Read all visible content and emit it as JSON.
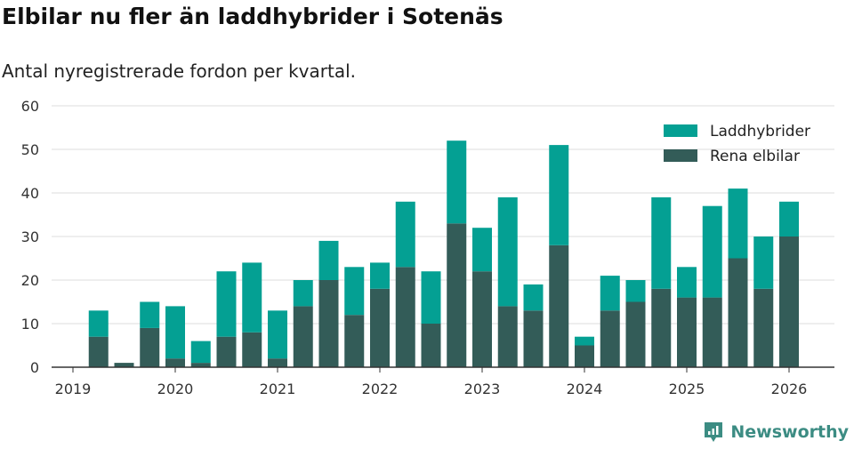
{
  "chart_data": {
    "type": "bar",
    "stacked": true,
    "title": "Elbilar nu fler än laddhybrider i Sotenäs",
    "subtitle": "Antal nyregistrerade fordon per kvartal.",
    "xlabel": "",
    "ylabel": "",
    "ylim": [
      0,
      60
    ],
    "yticks": [
      "0",
      "10",
      "20",
      "30",
      "40",
      "50",
      "60"
    ],
    "xticks": [
      "2019",
      "2020",
      "2021",
      "2022",
      "2023",
      "2024",
      "2025",
      "2026"
    ],
    "xrange": [
      2019,
      2026.5
    ],
    "grid": true,
    "legend_position": "top-right",
    "categories": [
      "2019 Q2",
      "2019 Q3",
      "2019 Q4",
      "2020 Q1",
      "2020 Q2",
      "2020 Q3",
      "2020 Q4",
      "2021 Q1",
      "2021 Q2",
      "2021 Q3",
      "2021 Q4",
      "2022 Q1",
      "2022 Q2",
      "2022 Q3",
      "2022 Q4",
      "2023 Q1",
      "2023 Q2",
      "2023 Q3",
      "2023 Q4",
      "2024 Q1",
      "2024 Q2",
      "2024 Q3",
      "2024 Q4",
      "2025 Q1",
      "2025 Q2",
      "2025 Q3",
      "2025 Q4",
      "2026 Q1"
    ],
    "x": [
      2019.25,
      2019.5,
      2019.75,
      2020.0,
      2020.25,
      2020.5,
      2020.75,
      2021.0,
      2021.25,
      2021.5,
      2021.75,
      2022.0,
      2022.25,
      2022.5,
      2022.75,
      2023.0,
      2023.25,
      2023.5,
      2023.75,
      2024.0,
      2024.25,
      2024.5,
      2024.75,
      2025.0,
      2025.25,
      2025.5,
      2025.75,
      2026.0
    ],
    "series": [
      {
        "name": "Rena elbilar",
        "color": "#335c58",
        "values": [
          7,
          1,
          9,
          2,
          1,
          7,
          8,
          2,
          14,
          20,
          12,
          18,
          23,
          10,
          33,
          22,
          14,
          13,
          28,
          5,
          13,
          15,
          18,
          16,
          16,
          25,
          18,
          30
        ]
      },
      {
        "name": "Laddhybrider",
        "color": "#04a093",
        "values": [
          6,
          0,
          6,
          12,
          5,
          15,
          16,
          11,
          6,
          9,
          11,
          6,
          15,
          12,
          19,
          10,
          25,
          6,
          23,
          2,
          8,
          5,
          21,
          7,
          21,
          16,
          12,
          8
        ]
      }
    ]
  },
  "brand": {
    "name": "Newsworthy",
    "color": "#3c8c83"
  }
}
